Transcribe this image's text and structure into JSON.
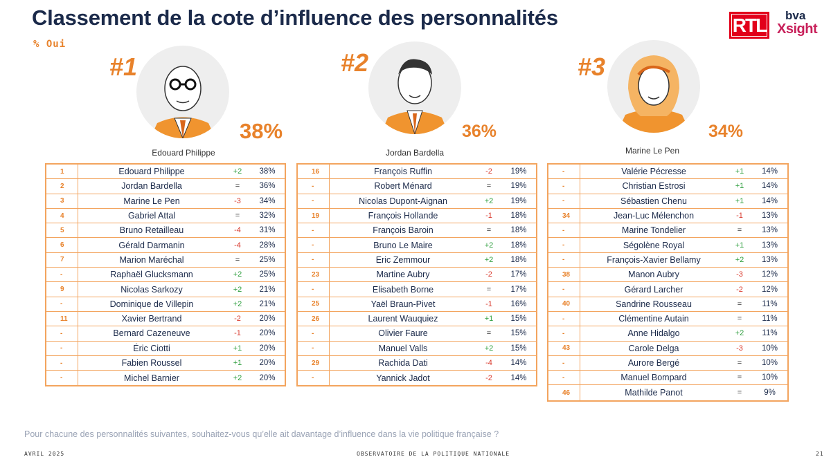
{
  "header": {
    "title": "Classement de la cote d’influence des personnalités",
    "subtitle": "% Oui",
    "logo_rtl": "RTL",
    "logo_bva_top": "bva",
    "logo_bva_bottom": "Xsight"
  },
  "podium": [
    {
      "rank": "#1",
      "name": "Edouard Philippe",
      "value": "38%"
    },
    {
      "rank": "#2",
      "name": "Jordan Bardella",
      "value": "36%"
    },
    {
      "rank": "#3",
      "name": "Marine Le Pen",
      "value": "34%"
    }
  ],
  "chart_data": {
    "type": "table",
    "title": "Classement de la cote d’influence des personnalités",
    "subtitle": "% Oui",
    "columns": [
      "rank",
      "name",
      "change",
      "value"
    ],
    "tables": [
      [
        {
          "rank": "1",
          "name": "Edouard Philippe",
          "change": "+2",
          "value": "38%"
        },
        {
          "rank": "2",
          "name": "Jordan Bardella",
          "change": "=",
          "value": "36%"
        },
        {
          "rank": "3",
          "name": "Marine Le Pen",
          "change": "-3",
          "value": "34%"
        },
        {
          "rank": "4",
          "name": "Gabriel Attal",
          "change": "=",
          "value": "32%"
        },
        {
          "rank": "5",
          "name": "Bruno Retailleau",
          "change": "-4",
          "value": "31%"
        },
        {
          "rank": "6",
          "name": "Gérald Darmanin",
          "change": "-4",
          "value": "28%"
        },
        {
          "rank": "7",
          "name": "Marion Maréchal",
          "change": "=",
          "value": "25%"
        },
        {
          "rank": "-",
          "name": "Raphaël Glucksmann",
          "change": "+2",
          "value": "25%"
        },
        {
          "rank": "9",
          "name": "Nicolas Sarkozy",
          "change": "+2",
          "value": "21%"
        },
        {
          "rank": "-",
          "name": "Dominique de Villepin",
          "change": "+2",
          "value": "21%"
        },
        {
          "rank": "11",
          "name": "Xavier Bertrand",
          "change": "-2",
          "value": "20%"
        },
        {
          "rank": "-",
          "name": "Bernard Cazeneuve",
          "change": "-1",
          "value": "20%"
        },
        {
          "rank": "-",
          "name": "Éric Ciotti",
          "change": "+1",
          "value": "20%"
        },
        {
          "rank": "-",
          "name": "Fabien Roussel",
          "change": "+1",
          "value": "20%"
        },
        {
          "rank": "-",
          "name": "Michel Barnier",
          "change": "+2",
          "value": "20%"
        }
      ],
      [
        {
          "rank": "16",
          "name": "François Ruffin",
          "change": "-2",
          "value": "19%"
        },
        {
          "rank": "-",
          "name": "Robert Ménard",
          "change": "=",
          "value": "19%"
        },
        {
          "rank": "-",
          "name": "Nicolas Dupont-Aignan",
          "change": "+2",
          "value": "19%"
        },
        {
          "rank": "19",
          "name": "François Hollande",
          "change": "-1",
          "value": "18%"
        },
        {
          "rank": "-",
          "name": "François Baroin",
          "change": "=",
          "value": "18%"
        },
        {
          "rank": "-",
          "name": "Bruno Le Maire",
          "change": "+2",
          "value": "18%"
        },
        {
          "rank": "-",
          "name": "Eric Zemmour",
          "change": "+2",
          "value": "18%"
        },
        {
          "rank": "23",
          "name": "Martine Aubry",
          "change": "-2",
          "value": "17%"
        },
        {
          "rank": "-",
          "name": "Elisabeth Borne",
          "change": "=",
          "value": "17%"
        },
        {
          "rank": "25",
          "name": "Yaël Braun-Pivet",
          "change": "-1",
          "value": "16%"
        },
        {
          "rank": "26",
          "name": "Laurent Wauquiez",
          "change": "+1",
          "value": "15%"
        },
        {
          "rank": "-",
          "name": "Olivier Faure",
          "change": "=",
          "value": "15%"
        },
        {
          "rank": "-",
          "name": "Manuel Valls",
          "change": "+2",
          "value": "15%"
        },
        {
          "rank": "29",
          "name": "Rachida Dati",
          "change": "-4",
          "value": "14%"
        },
        {
          "rank": "-",
          "name": "Yannick Jadot",
          "change": "-2",
          "value": "14%"
        }
      ],
      [
        {
          "rank": "-",
          "name": "Valérie Pécresse",
          "change": "+1",
          "value": "14%"
        },
        {
          "rank": "-",
          "name": "Christian Estrosi",
          "change": "+1",
          "value": "14%"
        },
        {
          "rank": "-",
          "name": "Sébastien Chenu",
          "change": "+1",
          "value": "14%"
        },
        {
          "rank": "34",
          "name": "Jean-Luc Mélenchon",
          "change": "-1",
          "value": "13%"
        },
        {
          "rank": "-",
          "name": "Marine Tondelier",
          "change": "=",
          "value": "13%"
        },
        {
          "rank": "-",
          "name": "Ségolène Royal",
          "change": "+1",
          "value": "13%"
        },
        {
          "rank": "-",
          "name": "François-Xavier Bellamy",
          "change": "+2",
          "value": "13%"
        },
        {
          "rank": "38",
          "name": "Manon Aubry",
          "change": "-3",
          "value": "12%"
        },
        {
          "rank": "-",
          "name": "Gérard Larcher",
          "change": "-2",
          "value": "12%"
        },
        {
          "rank": "40",
          "name": "Sandrine Rousseau",
          "change": "=",
          "value": "11%"
        },
        {
          "rank": "-",
          "name": "Clémentine Autain",
          "change": "=",
          "value": "11%"
        },
        {
          "rank": "-",
          "name": "Anne Hidalgo",
          "change": "+2",
          "value": "11%"
        },
        {
          "rank": "43",
          "name": "Carole Delga",
          "change": "-3",
          "value": "10%"
        },
        {
          "rank": "-",
          "name": "Aurore Bergé",
          "change": "=",
          "value": "10%"
        },
        {
          "rank": "-",
          "name": "Manuel Bompard",
          "change": "=",
          "value": "10%"
        },
        {
          "rank": "46",
          "name": "Mathilde Panot",
          "change": "=",
          "value": "9%"
        }
      ]
    ]
  },
  "footer": {
    "question": "Pour chacune des personnalités suivantes, souhaitez-vous qu’elle ait davantage d’influence dans la vie politique française ?",
    "left": "AVRIL 2025",
    "center": "OBSERVATOIRE DE LA POLITIQUE NATIONALE",
    "right": "21"
  },
  "colors": {
    "accent": "#e8822b",
    "title": "#1b2a4a",
    "positive": "#2e9e3e",
    "negative": "#d93a2e",
    "rtl_red": "#e2001a",
    "bva_pink": "#c8205a"
  }
}
